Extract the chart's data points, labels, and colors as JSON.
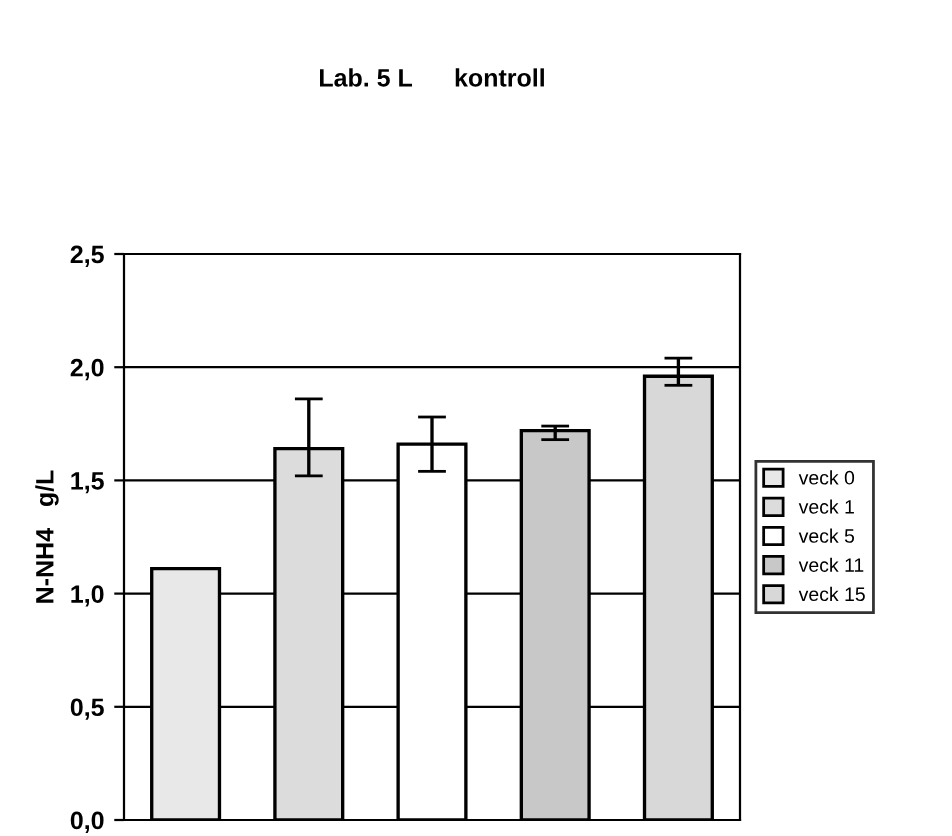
{
  "chart_data": {
    "type": "bar",
    "title": "Lab. 5 L      kontroll",
    "ylabel": "N-NH4   g/L",
    "categories": [
      null
    ],
    "series": [
      {
        "name": "veck 0",
        "color": "#e8e8e8",
        "values": [
          1.11
        ]
      },
      {
        "name": "veck 1",
        "color": "#dcdcdc",
        "values": [
          1.64
        ],
        "errors": [
          [
            1.52,
            1.86
          ]
        ]
      },
      {
        "name": "veck 5",
        "color": "#ffffff",
        "values": [
          1.66
        ],
        "errors": [
          [
            1.54,
            1.78
          ]
        ]
      },
      {
        "name": "veck 11",
        "color": "#c8c8c8",
        "values": [
          1.72
        ],
        "errors": [
          [
            1.68,
            1.74
          ]
        ]
      },
      {
        "name": "veck 15",
        "color": "#d8d8d8",
        "values": [
          1.96
        ],
        "errors": [
          [
            1.92,
            2.04
          ]
        ]
      }
    ],
    "ylim": [
      0,
      2.5
    ],
    "yticks": [
      {
        "value": 0,
        "label": "0,0"
      },
      {
        "value": 0.5,
        "label": "0,5"
      },
      {
        "value": 1,
        "label": "1,0"
      },
      {
        "value": 1.5,
        "label": "1,5"
      },
      {
        "value": 2,
        "label": "2,0"
      },
      {
        "value": 2.5,
        "label": "2,5"
      }
    ],
    "grid": "y",
    "legend": "right"
  }
}
